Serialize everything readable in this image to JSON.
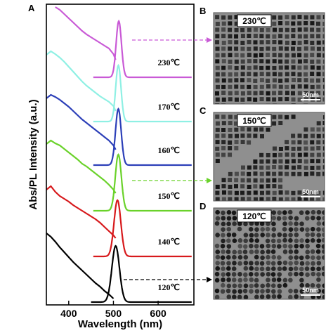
{
  "chart_data": {
    "type": "line",
    "panel_letter": "A",
    "xlabel": "Wavelength (nm)",
    "ylabel": "Abs/PL Intensity (a.u.)",
    "xlim": [
      350,
      680
    ],
    "xticks": [
      400,
      500,
      600
    ],
    "tick_labels": [
      "400",
      "500",
      "600"
    ],
    "grid": false,
    "series": [
      {
        "name": "120℃",
        "color": "#000000",
        "pl_peak": 505,
        "pl_fwhm": 20,
        "pl_start": 450,
        "abs_x": [
          350,
          360,
          370,
          380,
          390,
          400,
          410,
          420,
          430,
          440,
          450,
          460,
          470,
          480,
          490,
          500
        ],
        "abs_y": [
          0.98,
          0.93,
          0.86,
          0.78,
          0.71,
          0.64,
          0.57,
          0.51,
          0.45,
          0.39,
          0.33,
          0.27,
          0.22,
          0.16,
          0.11,
          0.05
        ]
      },
      {
        "name": "140℃",
        "color": "#d7191c",
        "pl_peak": 509,
        "pl_fwhm": 18,
        "pl_start": 455,
        "abs_x": [
          350,
          360,
          370,
          380,
          390,
          400,
          410,
          420,
          430,
          440,
          450,
          460,
          470,
          480,
          490,
          500,
          505
        ],
        "abs_y": [
          0.95,
          1.0,
          0.92,
          0.86,
          0.82,
          0.78,
          0.73,
          0.69,
          0.65,
          0.61,
          0.57,
          0.53,
          0.48,
          0.42,
          0.36,
          0.3,
          0.26
        ]
      },
      {
        "name": "150℃",
        "color": "#6ad22a",
        "pl_peak": 511,
        "pl_fwhm": 16,
        "pl_start": 455,
        "abs_x": [
          350,
          360,
          370,
          380,
          390,
          400,
          410,
          420,
          430,
          440,
          450,
          460,
          470,
          480,
          490,
          500,
          505
        ],
        "abs_y": [
          0.95,
          1.0,
          0.96,
          0.93,
          0.88,
          0.83,
          0.78,
          0.73,
          0.67,
          0.63,
          0.58,
          0.53,
          0.48,
          0.43,
          0.37,
          0.3,
          0.25
        ]
      },
      {
        "name": "160℃",
        "color": "#2c3fb8",
        "pl_peak": 511,
        "pl_fwhm": 15,
        "pl_start": 455,
        "abs_x": [
          350,
          360,
          370,
          380,
          390,
          400,
          410,
          420,
          430,
          440,
          450,
          460,
          470,
          480,
          490,
          500,
          505
        ],
        "abs_y": [
          0.95,
          1.0,
          0.97,
          0.93,
          0.88,
          0.83,
          0.77,
          0.71,
          0.65,
          0.6,
          0.55,
          0.5,
          0.45,
          0.4,
          0.35,
          0.28,
          0.22
        ]
      },
      {
        "name": "170℃",
        "color": "#8ff0e4",
        "pl_peak": 511,
        "pl_fwhm": 14,
        "pl_start": 455,
        "abs_x": [
          350,
          360,
          370,
          380,
          390,
          400,
          410,
          420,
          430,
          440,
          450,
          460,
          470,
          480,
          490,
          500,
          505
        ],
        "abs_y": [
          0.95,
          1.0,
          0.96,
          0.91,
          0.85,
          0.78,
          0.71,
          0.64,
          0.57,
          0.51,
          0.46,
          0.41,
          0.36,
          0.32,
          0.28,
          0.22,
          0.15
        ]
      },
      {
        "name": "230℃",
        "color": "#c95ad6",
        "pl_peak": 512,
        "pl_fwhm": 14,
        "pl_start": 455,
        "abs_x": [
          370,
          380,
          390,
          400,
          410,
          420,
          430,
          440,
          450,
          460,
          470,
          480,
          490,
          500,
          505
        ],
        "abs_y": [
          1.0,
          0.96,
          0.9,
          0.84,
          0.78,
          0.72,
          0.66,
          0.61,
          0.57,
          0.53,
          0.49,
          0.45,
          0.41,
          0.33,
          0.25
        ]
      }
    ]
  },
  "micrographs": [
    {
      "panel": "B",
      "badge": "230℃",
      "scale_bar": "50nm",
      "particle": "cube",
      "linked_series": "230℃",
      "arrow_color": "#c95ad6"
    },
    {
      "panel": "C",
      "badge": "150℃",
      "scale_bar": "50nm",
      "particle": "cube",
      "linked_series": "150℃",
      "arrow_color": "#6ad22a"
    },
    {
      "panel": "D",
      "badge": "120℃",
      "scale_bar": "50nm",
      "particle": "sphere",
      "linked_series": "120℃",
      "arrow_color": "#000000"
    }
  ]
}
